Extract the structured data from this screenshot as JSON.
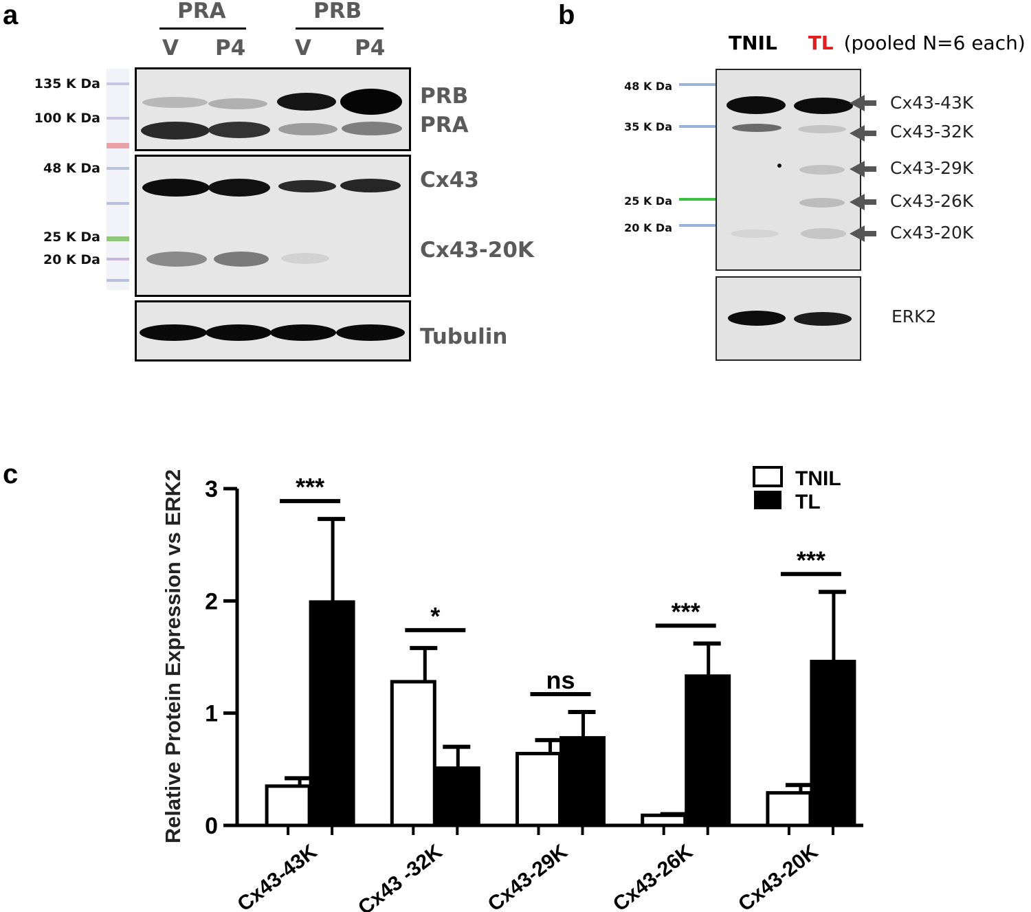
{
  "panel_a": {
    "letter": "a",
    "groups": [
      "PRA",
      "PRB"
    ],
    "lanes": [
      "V",
      "P4",
      "V",
      "P4"
    ],
    "markers": [
      "135 K Da",
      "100 K Da",
      "48 K Da",
      "25 K Da",
      "20 K Da"
    ],
    "band_labels": [
      "PRB",
      "PRA",
      "Cx43",
      "Cx43-20K",
      "Tubulin"
    ]
  },
  "panel_b": {
    "letter": "b",
    "lane_tnil": "TNIL",
    "lane_tl": "TL",
    "lane_note": "(pooled N=6 each)",
    "markers": [
      "48 K Da",
      "35 K Da",
      "25 K Da",
      "20 K Da"
    ],
    "band_labels": [
      "Cx43-43K",
      "Cx43-32K",
      "Cx43-29K",
      "Cx43-26K",
      "Cx43-20K"
    ],
    "loading_label": "ERK2",
    "colors": {
      "tl": "#e02020",
      "marker_blue": "#9ab4dc",
      "marker_green": "#3cbf3c"
    }
  },
  "panel_c": {
    "letter": "c"
  },
  "chart_data": {
    "type": "bar",
    "categories": [
      "Cx43-43K",
      "Cx43 -32K",
      "Cx43-29K",
      "Cx43-26K",
      "Cx43-20K"
    ],
    "series": [
      {
        "name": "TNIL",
        "values": [
          0.35,
          1.28,
          0.64,
          0.09,
          0.29
        ],
        "errors": [
          0.07,
          0.3,
          0.12,
          0.01,
          0.07
        ],
        "fill": "#ffffff"
      },
      {
        "name": "TL",
        "values": [
          1.99,
          0.51,
          0.78,
          1.33,
          1.46
        ],
        "errors": [
          0.74,
          0.19,
          0.23,
          0.29,
          0.62
        ],
        "fill": "#000000"
      }
    ],
    "significance": [
      "***",
      "*",
      "ns",
      "***",
      "***"
    ],
    "ylabel": "Relative Protein Expression vs ERK2",
    "xlabel": "",
    "ylim": [
      0,
      3
    ],
    "yticks": [
      0,
      1,
      2,
      3
    ],
    "legend_position": "top-right"
  }
}
